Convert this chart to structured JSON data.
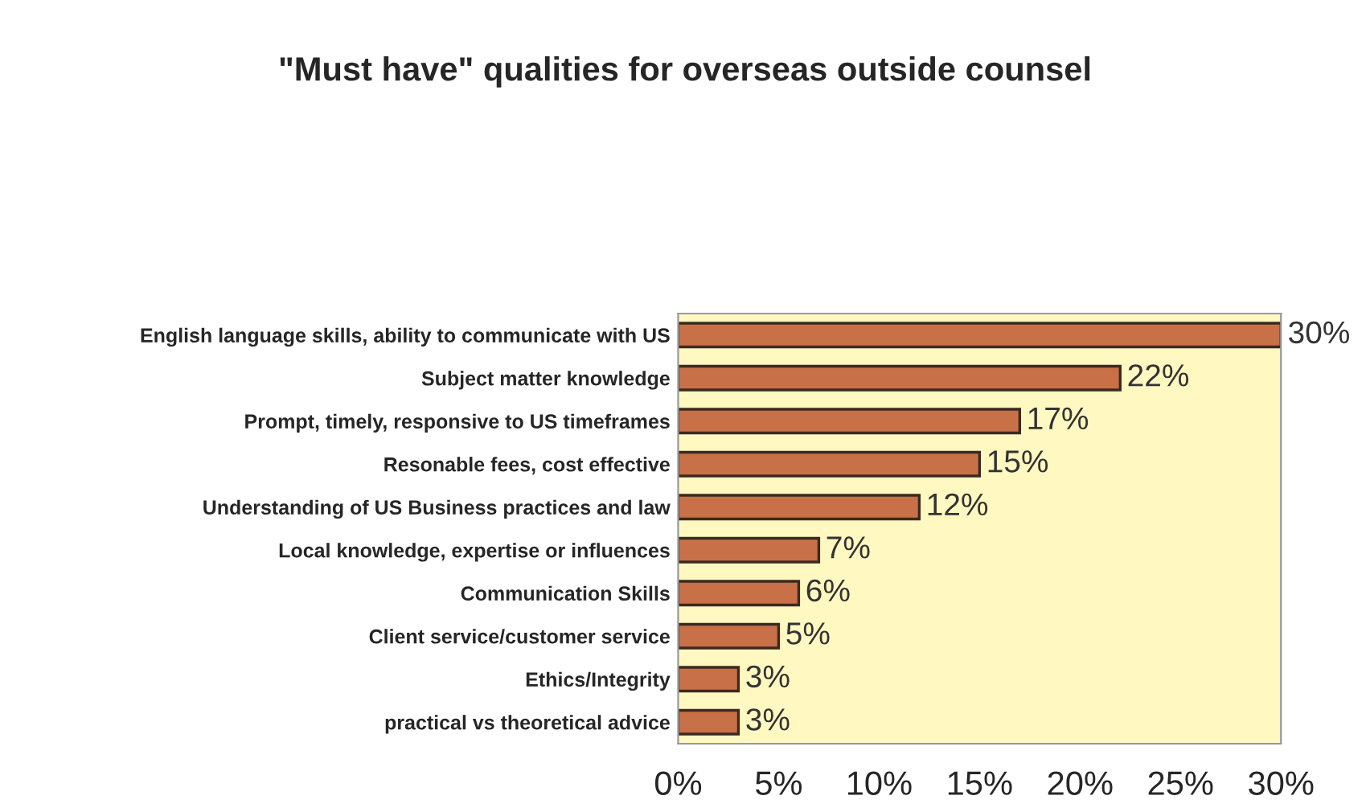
{
  "chart_data": {
    "type": "bar",
    "orientation": "horizontal",
    "title": "\"Must have\" qualities for overseas outside counsel",
    "categories": [
      "English language skills, ability to communicate with US",
      "Subject matter knowledge",
      "Prompt, timely, responsive to US timeframes",
      "Resonable fees, cost effective",
      "Understanding of US Business practices and law",
      "Local knowledge, expertise or influences",
      "Communication Skills",
      "Client service/customer service",
      "Ethics/Integrity",
      "practical vs theoretical advice"
    ],
    "values": [
      30,
      22,
      17,
      15,
      12,
      7,
      6,
      5,
      3,
      3
    ],
    "value_labels": [
      "30%",
      "22%",
      "17%",
      "15%",
      "12%",
      "7%",
      "6%",
      "5%",
      "3%",
      "3%"
    ],
    "color": "#c87048",
    "xlim": [
      0,
      30
    ],
    "xticks": [
      {
        "value": 0,
        "label": "0%"
      },
      {
        "value": 5,
        "label": "5%"
      },
      {
        "value": 10,
        "label": "10%"
      },
      {
        "value": 15,
        "label": "15%"
      },
      {
        "value": 20,
        "label": "20%"
      },
      {
        "value": 25,
        "label": "25%"
      },
      {
        "value": 30,
        "label": "30%"
      }
    ],
    "grid": false
  }
}
